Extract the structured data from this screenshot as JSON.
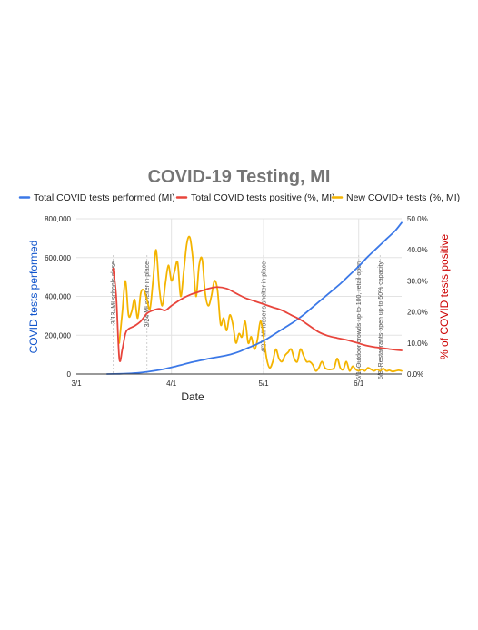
{
  "chart_data": {
    "type": "line",
    "title": "COVID-19 Testing, MI",
    "xlabel": "Date",
    "ylabel_left": "COVID tests performed",
    "ylabel_right": "% of COVID tests positive",
    "x_range": [
      "2020-03-01",
      "2020-06-15"
    ],
    "x_ticks": [
      {
        "date": "2020-03-01",
        "label": "3/1"
      },
      {
        "date": "2020-04-01",
        "label": "4/1"
      },
      {
        "date": "2020-05-01",
        "label": "5/1"
      },
      {
        "date": "2020-06-01",
        "label": "6/1"
      }
    ],
    "y_left": {
      "min": 0,
      "max": 800000,
      "ticks": [
        "0",
        "200,000",
        "400,000",
        "600,000",
        "800,000"
      ],
      "tick_values": [
        0,
        200000,
        400000,
        600000,
        800000
      ]
    },
    "y_right": {
      "min": 0,
      "max": 50,
      "ticks": [
        "0.0%",
        "10.0%",
        "20.0%",
        "30.0%",
        "40.0%",
        "50.0%"
      ],
      "tick_values": [
        0,
        10,
        20,
        30,
        40,
        50
      ]
    },
    "legend_position": "top",
    "grid": "horizontal",
    "series": [
      {
        "name": "Total COVID tests performed (MI)",
        "axis": "left",
        "color": "#3b78e7",
        "points": [
          [
            "2020-03-11",
            0
          ],
          [
            "2020-03-15",
            1000
          ],
          [
            "2020-03-18",
            3000
          ],
          [
            "2020-03-21",
            6000
          ],
          [
            "2020-03-24",
            11000
          ],
          [
            "2020-03-27",
            18000
          ],
          [
            "2020-03-30",
            27000
          ],
          [
            "2020-04-02",
            38000
          ],
          [
            "2020-04-05",
            50000
          ],
          [
            "2020-04-08",
            62000
          ],
          [
            "2020-04-11",
            72000
          ],
          [
            "2020-04-14",
            82000
          ],
          [
            "2020-04-17",
            90000
          ],
          [
            "2020-04-20",
            100000
          ],
          [
            "2020-04-23",
            115000
          ],
          [
            "2020-04-26",
            135000
          ],
          [
            "2020-04-29",
            155000
          ],
          [
            "2020-05-02",
            180000
          ],
          [
            "2020-05-05",
            210000
          ],
          [
            "2020-05-08",
            240000
          ],
          [
            "2020-05-11",
            270000
          ],
          [
            "2020-05-14",
            305000
          ],
          [
            "2020-05-17",
            345000
          ],
          [
            "2020-05-20",
            385000
          ],
          [
            "2020-05-23",
            425000
          ],
          [
            "2020-05-26",
            465000
          ],
          [
            "2020-05-29",
            510000
          ],
          [
            "2020-06-01",
            555000
          ],
          [
            "2020-06-04",
            605000
          ],
          [
            "2020-06-07",
            650000
          ],
          [
            "2020-06-10",
            695000
          ],
          [
            "2020-06-13",
            740000
          ],
          [
            "2020-06-15",
            780000
          ]
        ]
      },
      {
        "name": "Total COVID tests positive (%, MI)",
        "axis": "right",
        "color": "#e8453c",
        "points": [
          [
            "2020-03-13",
            34
          ],
          [
            "2020-03-14",
            25
          ],
          [
            "2020-03-15",
            5
          ],
          [
            "2020-03-16",
            8
          ],
          [
            "2020-03-17",
            13
          ],
          [
            "2020-03-18",
            14.5
          ],
          [
            "2020-03-20",
            15.5
          ],
          [
            "2020-03-22",
            17
          ],
          [
            "2020-03-24",
            19.5
          ],
          [
            "2020-03-26",
            20.5
          ],
          [
            "2020-03-28",
            21
          ],
          [
            "2020-03-30",
            20.5
          ],
          [
            "2020-04-01",
            22
          ],
          [
            "2020-04-04",
            24
          ],
          [
            "2020-04-07",
            25.5
          ],
          [
            "2020-04-10",
            26.5
          ],
          [
            "2020-04-13",
            27.5
          ],
          [
            "2020-04-16",
            28
          ],
          [
            "2020-04-19",
            27.5
          ],
          [
            "2020-04-22",
            26
          ],
          [
            "2020-04-25",
            24.5
          ],
          [
            "2020-04-28",
            23.5
          ],
          [
            "2020-05-01",
            22.5
          ],
          [
            "2020-05-04",
            21.5
          ],
          [
            "2020-05-07",
            20.5
          ],
          [
            "2020-05-10",
            19
          ],
          [
            "2020-05-13",
            17.5
          ],
          [
            "2020-05-16",
            15.5
          ],
          [
            "2020-05-19",
            13.5
          ],
          [
            "2020-05-22",
            12.3
          ],
          [
            "2020-05-25",
            11.6
          ],
          [
            "2020-05-28",
            11
          ],
          [
            "2020-05-31",
            10.2
          ],
          [
            "2020-06-03",
            9.3
          ],
          [
            "2020-06-06",
            8.7
          ],
          [
            "2020-06-09",
            8.3
          ],
          [
            "2020-06-12",
            7.9
          ],
          [
            "2020-06-15",
            7.6
          ]
        ]
      },
      {
        "name": "New COVID+ tests (%, MI)",
        "axis": "right",
        "color": "#f4b400",
        "points": [
          [
            "2020-03-15",
            10
          ],
          [
            "2020-03-16",
            20
          ],
          [
            "2020-03-17",
            30
          ],
          [
            "2020-03-18",
            19
          ],
          [
            "2020-03-19",
            20
          ],
          [
            "2020-03-20",
            24
          ],
          [
            "2020-03-21",
            18
          ],
          [
            "2020-03-22",
            26
          ],
          [
            "2020-03-23",
            27
          ],
          [
            "2020-03-24",
            24
          ],
          [
            "2020-03-25",
            21
          ],
          [
            "2020-03-26",
            30
          ],
          [
            "2020-03-27",
            40
          ],
          [
            "2020-03-28",
            28
          ],
          [
            "2020-03-29",
            22
          ],
          [
            "2020-03-30",
            29
          ],
          [
            "2020-03-31",
            35
          ],
          [
            "2020-04-01",
            30
          ],
          [
            "2020-04-02",
            33
          ],
          [
            "2020-04-03",
            36
          ],
          [
            "2020-04-04",
            25
          ],
          [
            "2020-04-05",
            33
          ],
          [
            "2020-04-06",
            42
          ],
          [
            "2020-04-07",
            44
          ],
          [
            "2020-04-08",
            37
          ],
          [
            "2020-04-09",
            25
          ],
          [
            "2020-04-10",
            35
          ],
          [
            "2020-04-11",
            37
          ],
          [
            "2020-04-12",
            26
          ],
          [
            "2020-04-13",
            22
          ],
          [
            "2020-04-14",
            25
          ],
          [
            "2020-04-15",
            30
          ],
          [
            "2020-04-16",
            27
          ],
          [
            "2020-04-17",
            16
          ],
          [
            "2020-04-18",
            18
          ],
          [
            "2020-04-19",
            14
          ],
          [
            "2020-04-20",
            19
          ],
          [
            "2020-04-21",
            16
          ],
          [
            "2020-04-22",
            10
          ],
          [
            "2020-04-23",
            13
          ],
          [
            "2020-04-24",
            12
          ],
          [
            "2020-04-25",
            17
          ],
          [
            "2020-04-26",
            10
          ],
          [
            "2020-04-27",
            12
          ],
          [
            "2020-04-28",
            8
          ],
          [
            "2020-04-29",
            11
          ],
          [
            "2020-04-30",
            17
          ],
          [
            "2020-05-01",
            12
          ],
          [
            "2020-05-02",
            5
          ],
          [
            "2020-05-03",
            2
          ],
          [
            "2020-05-04",
            4
          ],
          [
            "2020-05-05",
            8
          ],
          [
            "2020-05-06",
            5
          ],
          [
            "2020-05-07",
            4
          ],
          [
            "2020-05-08",
            6
          ],
          [
            "2020-05-09",
            7
          ],
          [
            "2020-05-10",
            8
          ],
          [
            "2020-05-11",
            5
          ],
          [
            "2020-05-12",
            4
          ],
          [
            "2020-05-13",
            8
          ],
          [
            "2020-05-14",
            6
          ],
          [
            "2020-05-15",
            4
          ],
          [
            "2020-05-16",
            4
          ],
          [
            "2020-05-17",
            3
          ],
          [
            "2020-05-18",
            1
          ],
          [
            "2020-05-19",
            2
          ],
          [
            "2020-05-20",
            4
          ],
          [
            "2020-05-21",
            2
          ],
          [
            "2020-05-22",
            1.5
          ],
          [
            "2020-05-23",
            1.5
          ],
          [
            "2020-05-24",
            2
          ],
          [
            "2020-05-25",
            5
          ],
          [
            "2020-05-26",
            2
          ],
          [
            "2020-05-27",
            1.5
          ],
          [
            "2020-05-28",
            4
          ],
          [
            "2020-05-29",
            1
          ],
          [
            "2020-05-30",
            2.5
          ],
          [
            "2020-05-31",
            1.5
          ],
          [
            "2020-06-01",
            1
          ],
          [
            "2020-06-02",
            1.5
          ],
          [
            "2020-06-03",
            1
          ],
          [
            "2020-06-04",
            2
          ],
          [
            "2020-06-05",
            1.5
          ],
          [
            "2020-06-06",
            1
          ],
          [
            "2020-06-07",
            1.5
          ],
          [
            "2020-06-08",
            1
          ],
          [
            "2020-06-09",
            1.8
          ],
          [
            "2020-06-10",
            1
          ],
          [
            "2020-06-11",
            1.2
          ],
          [
            "2020-06-12",
            0.8
          ],
          [
            "2020-06-13",
            1
          ],
          [
            "2020-06-14",
            1.2
          ],
          [
            "2020-06-15",
            1
          ]
        ]
      }
    ],
    "annotations": [
      {
        "date": "2020-03-13",
        "text": "3/13–MI schools close"
      },
      {
        "date": "2020-03-24",
        "text": "3/24 MI shelter in place"
      },
      {
        "date": "2020-05-01",
        "text": "4/27–MI loosens shelter in place"
      },
      {
        "date": "2020-06-01",
        "text": "6/1–Outdoor crowds up to 100, retail open"
      },
      {
        "date": "2020-06-08",
        "text": "6/8–Restaurants open up to 50% capacity"
      }
    ]
  }
}
